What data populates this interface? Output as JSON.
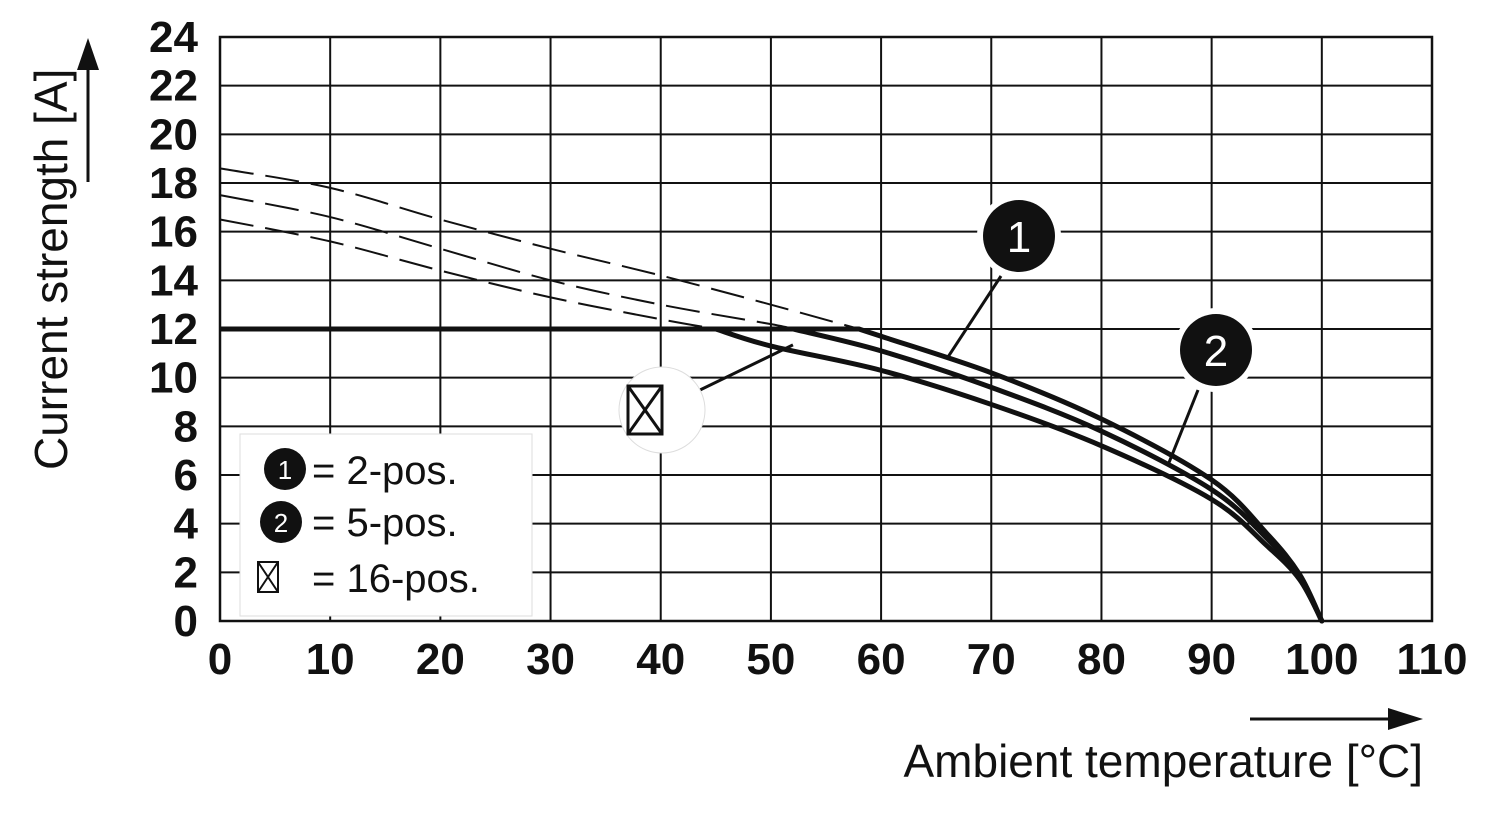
{
  "chart_data": {
    "type": "line",
    "title": "",
    "xlabel": "Ambient temperature [°C]",
    "ylabel": "Current strength [A]",
    "xlim": [
      0,
      110
    ],
    "ylim": [
      0,
      24
    ],
    "xticks": [
      0,
      10,
      20,
      30,
      40,
      50,
      60,
      70,
      80,
      90,
      100,
      110
    ],
    "yticks": [
      0,
      2,
      4,
      6,
      8,
      10,
      12,
      14,
      16,
      18,
      20,
      22,
      24
    ],
    "grid": true,
    "legend_position": "bottom-left",
    "legend": [
      {
        "marker": "1",
        "text": "= 2-pos."
      },
      {
        "marker": "2",
        "text": "= 5-pos."
      },
      {
        "marker": "box-x-icon",
        "text": "= 16-pos."
      }
    ],
    "annotations": [
      {
        "marker": "1",
        "points_to": "2-pos. curve"
      },
      {
        "marker": "2",
        "points_to": "5-pos. curve"
      },
      {
        "marker": "box-x-icon",
        "points_to": "16-pos. curve"
      }
    ],
    "current_limit": {
      "value": 12,
      "x": [
        0,
        58
      ]
    },
    "series": [
      {
        "marker": "1",
        "derating": {
          "x": [
            0,
            10,
            20,
            30,
            40,
            50,
            58
          ],
          "y": [
            18.6,
            17.8,
            16.5,
            15.3,
            14.2,
            13.0,
            12.0
          ]
        },
        "curve": {
          "x": [
            58,
            60,
            70,
            80,
            90,
            95,
            98,
            100
          ],
          "y": [
            12.0,
            11.7,
            10.2,
            8.3,
            5.8,
            3.6,
            1.9,
            0
          ]
        }
      },
      {
        "marker": "2",
        "derating": {
          "x": [
            0,
            10,
            20,
            30,
            40,
            50,
            52
          ],
          "y": [
            17.5,
            16.6,
            15.3,
            14.0,
            13.0,
            12.2,
            12.0
          ]
        },
        "curve": {
          "x": [
            52,
            60,
            70,
            80,
            90,
            95,
            98,
            100
          ],
          "y": [
            12.0,
            11.1,
            9.6,
            7.8,
            5.4,
            3.4,
            1.8,
            0
          ]
        }
      },
      {
        "marker": "box-x-icon",
        "derating": {
          "x": [
            0,
            10,
            20,
            30,
            40,
            45
          ],
          "y": [
            16.5,
            15.6,
            14.4,
            13.3,
            12.4,
            12.0
          ]
        },
        "curve": {
          "x": [
            45,
            50,
            60,
            70,
            80,
            90,
            95,
            98,
            100
          ],
          "y": [
            12.0,
            11.3,
            10.3,
            8.9,
            7.2,
            5.0,
            3.1,
            1.7,
            0
          ]
        }
      }
    ]
  }
}
